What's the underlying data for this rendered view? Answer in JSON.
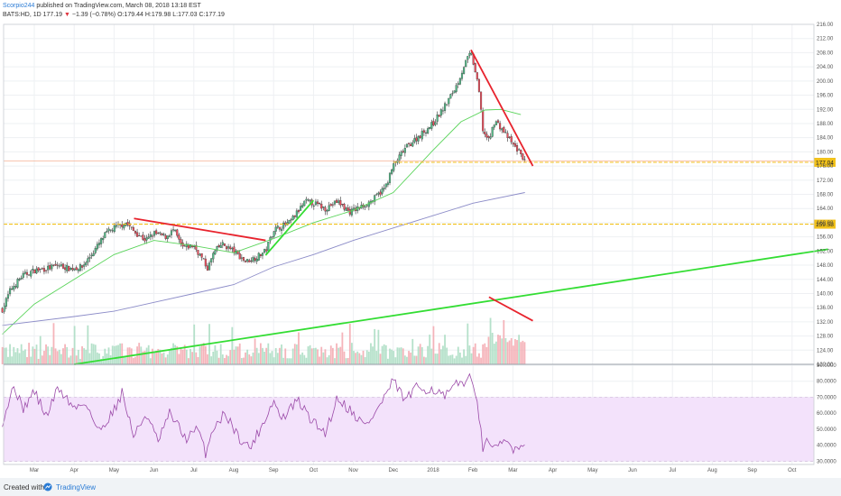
{
  "header": {
    "user": "Scorpio244",
    "published_text": "published on TradingView.com, March 08, 2018 13:18 EST",
    "symbol": "BATS:HD, 1D",
    "last": "177.19",
    "arrow": "▼",
    "change": "−1.39 (−0.78%)",
    "ohlc": {
      "o_label": "O:",
      "o": "179.44",
      "h_label": "H:",
      "h": "179.98",
      "l_label": "L:",
      "l": "177.03",
      "c_label": "C:",
      "c": "177.19"
    }
  },
  "footer": {
    "created_with": "Created with",
    "brand": "TradingView"
  },
  "colors": {
    "up": "#53b987",
    "down": "#eb4d5c",
    "ma_fast": "#5ad45a",
    "ma_slow": "#8c8cc8",
    "rsi": "#9b4aa8",
    "rsi_band": "#f3e2fb",
    "trend_red": "#e8232d",
    "trend_green": "#33dd33",
    "level": "#f2c21b",
    "price_line": "#f4a582",
    "tag": "#f2c21b",
    "brand": "#2a7bd5"
  },
  "chart_data": [
    {
      "type": "candlestick",
      "title": "BATS:HD, 1D",
      "x_axis": {
        "labels": [
          "Mar",
          "Apr",
          "May",
          "Jun",
          "Jul",
          "Aug",
          "Sep",
          "Oct",
          "Nov",
          "Dec",
          "2018",
          "Feb",
          "Mar",
          "Apr",
          "May",
          "Jun",
          "Jul",
          "Aug",
          "Sep",
          "Oct"
        ],
        "month_index": [
          0,
          1,
          2,
          3,
          4,
          5,
          6,
          7,
          8,
          9,
          10,
          11,
          12,
          13,
          14,
          15,
          16,
          17,
          18,
          19
        ]
      },
      "y_axis": {
        "range": [
          120,
          216
        ],
        "ticks": [
          "216.00",
          "212.00",
          "208.00",
          "204.00",
          "200.00",
          "196.00",
          "192.00",
          "188.00",
          "184.00",
          "180.00",
          "176.00",
          "172.00",
          "168.00",
          "164.00",
          "160.00",
          "156.00",
          "152.00",
          "148.00",
          "144.00",
          "140.00",
          "136.00",
          "132.00",
          "128.00",
          "124.00",
          "120.00"
        ]
      },
      "price_anchors": [
        [
          -0.8,
          135.5
        ],
        [
          -0.6,
          141.0
        ],
        [
          -0.3,
          145.0
        ],
        [
          0.0,
          146.5
        ],
        [
          0.3,
          147.0
        ],
        [
          0.6,
          148.0
        ],
        [
          0.9,
          147.0
        ],
        [
          1.2,
          147.5
        ],
        [
          1.5,
          152.0
        ],
        [
          1.8,
          157.0
        ],
        [
          2.0,
          158.5
        ],
        [
          2.3,
          160.0
        ],
        [
          2.5,
          157.5
        ],
        [
          2.8,
          155.0
        ],
        [
          3.0,
          157.0
        ],
        [
          3.3,
          156.0
        ],
        [
          3.5,
          158.0
        ],
        [
          3.7,
          153.0
        ],
        [
          4.0,
          153.5
        ],
        [
          4.2,
          150.0
        ],
        [
          4.35,
          147.0
        ],
        [
          4.5,
          151.5
        ],
        [
          4.7,
          154.0
        ],
        [
          5.0,
          152.0
        ],
        [
          5.3,
          149.0
        ],
        [
          5.6,
          150.5
        ],
        [
          5.8,
          152.0
        ],
        [
          6.0,
          158.0
        ],
        [
          6.2,
          159.0
        ],
        [
          6.4,
          160.0
        ],
        [
          6.6,
          163.0
        ],
        [
          6.8,
          166.0
        ],
        [
          7.0,
          165.5
        ],
        [
          7.3,
          164.0
        ],
        [
          7.6,
          166.0
        ],
        [
          7.9,
          163.0
        ],
        [
          8.2,
          164.5
        ],
        [
          8.5,
          166.5
        ],
        [
          8.8,
          170.0
        ],
        [
          9.0,
          176.0
        ],
        [
          9.3,
          181.0
        ],
        [
          9.6,
          184.0
        ],
        [
          10.0,
          188.0
        ],
        [
          10.3,
          193.0
        ],
        [
          10.6,
          199.0
        ],
        [
          10.8,
          205.0
        ],
        [
          10.95,
          208.0
        ],
        [
          11.05,
          203.0
        ],
        [
          11.15,
          197.0
        ],
        [
          11.25,
          186.0
        ],
        [
          11.4,
          183.0
        ],
        [
          11.55,
          189.0
        ],
        [
          11.75,
          186.0
        ],
        [
          12.0,
          182.0
        ],
        [
          12.2,
          179.5
        ],
        [
          12.3,
          177.2
        ]
      ],
      "series": [
        {
          "name": "",
          "type": "ma_fast",
          "points": [
            [
              -0.8,
              128.5
            ],
            [
              0.0,
              137.0
            ],
            [
              1.0,
              144.0
            ],
            [
              2.0,
              151.0
            ],
            [
              3.0,
              155.0
            ],
            [
              4.0,
              153.5
            ],
            [
              5.0,
              151.5
            ],
            [
              6.0,
              155.5
            ],
            [
              7.0,
              160.0
            ],
            [
              8.0,
              163.5
            ],
            [
              9.0,
              168.5
            ],
            [
              10.0,
              180.5
            ],
            [
              10.7,
              188.5
            ],
            [
              11.3,
              191.8
            ],
            [
              11.7,
              192.0
            ],
            [
              12.2,
              190.5
            ]
          ]
        },
        {
          "name": "",
          "type": "ma_slow",
          "points": [
            [
              -0.8,
              131.0
            ],
            [
              1.0,
              133.5
            ],
            [
              2.0,
              135.0
            ],
            [
              3.0,
              137.5
            ],
            [
              4.0,
              140.0
            ],
            [
              5.0,
              142.5
            ],
            [
              6.0,
              147.5
            ],
            [
              7.0,
              151.0
            ],
            [
              8.0,
              155.0
            ],
            [
              9.0,
              158.5
            ],
            [
              10.0,
              162.0
            ],
            [
              11.0,
              165.5
            ],
            [
              12.3,
              168.5
            ]
          ]
        }
      ],
      "trendlines": [
        {
          "color": "red",
          "points": [
            [
              2.5,
              161.2
            ],
            [
              5.8,
              155.0
            ]
          ]
        },
        {
          "color": "red",
          "points": [
            [
              10.95,
              208.8
            ],
            [
              12.5,
              176.0
            ]
          ]
        },
        {
          "color": "green",
          "points": [
            [
              5.8,
              150.8
            ],
            [
              7.0,
              166.3
            ]
          ]
        },
        {
          "color": "green",
          "points": [
            [
              1.0,
              120.0
            ],
            [
              19.9,
              152.5
            ]
          ]
        },
        {
          "color": "red",
          "points": [
            [
              11.4,
              139.0
            ],
            [
              12.5,
              132.3
            ]
          ]
        }
      ],
      "levels": [
        {
          "value": 177.04,
          "tag": "177.04",
          "color": "yellow"
        },
        {
          "value": 159.58,
          "tag": "159.58",
          "color": "yellow"
        }
      ],
      "current_price_line": 177.4,
      "volume": {
        "unit": "relative",
        "max_height": 1.0
      }
    },
    {
      "type": "line",
      "title": "",
      "indicator": "RSI",
      "y_axis": {
        "range": [
          28,
          90
        ],
        "ticks": [
          "90.0000",
          "80.0000",
          "70.0000",
          "60.0000",
          "50.0000",
          "40.0000",
          "30.0000"
        ]
      },
      "band": [
        30,
        70
      ],
      "dashed_levels": [
        70,
        30
      ],
      "anchors": [
        [
          -0.8,
          55
        ],
        [
          -0.5,
          78
        ],
        [
          -0.3,
          62
        ],
        [
          0.0,
          74
        ],
        [
          0.3,
          58
        ],
        [
          0.6,
          76
        ],
        [
          1.0,
          63
        ],
        [
          1.3,
          67
        ],
        [
          1.6,
          48
        ],
        [
          2.0,
          62
        ],
        [
          2.2,
          73
        ],
        [
          2.5,
          45
        ],
        [
          2.8,
          60
        ],
        [
          3.1,
          42
        ],
        [
          3.4,
          60
        ],
        [
          3.8,
          44
        ],
        [
          4.1,
          50
        ],
        [
          4.3,
          35
        ],
        [
          4.5,
          52
        ],
        [
          4.8,
          60
        ],
        [
          5.1,
          46
        ],
        [
          5.4,
          38
        ],
        [
          5.7,
          52
        ],
        [
          6.0,
          68
        ],
        [
          6.2,
          56
        ],
        [
          6.6,
          68
        ],
        [
          7.0,
          54
        ],
        [
          7.3,
          48
        ],
        [
          7.6,
          70
        ],
        [
          8.0,
          60
        ],
        [
          8.3,
          52
        ],
        [
          8.6,
          62
        ],
        [
          9.0,
          80
        ],
        [
          9.3,
          68
        ],
        [
          9.6,
          76
        ],
        [
          10.0,
          75
        ],
        [
          10.3,
          70
        ],
        [
          10.6,
          78
        ],
        [
          10.9,
          82
        ],
        [
          11.1,
          72
        ],
        [
          11.25,
          35
        ],
        [
          11.4,
          45
        ],
        [
          11.55,
          36
        ],
        [
          11.8,
          43
        ],
        [
          12.0,
          38
        ],
        [
          12.2,
          41
        ],
        [
          12.3,
          38
        ]
      ]
    }
  ]
}
